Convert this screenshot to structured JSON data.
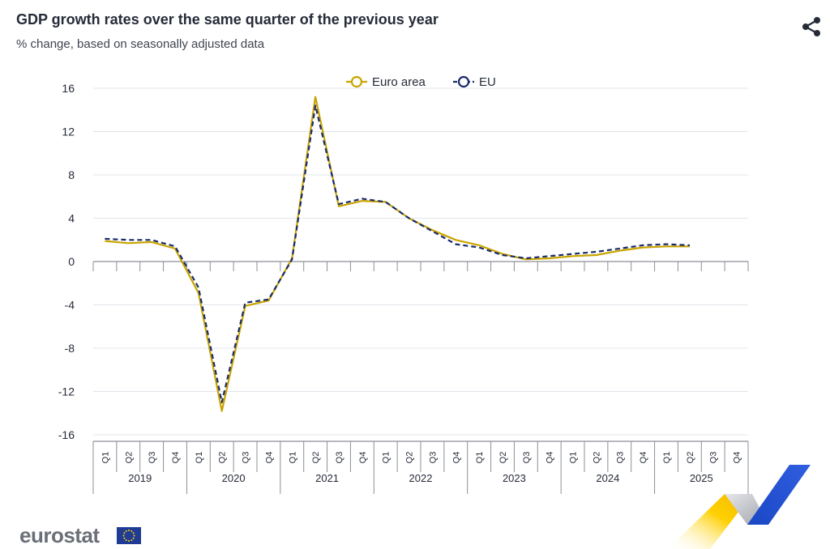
{
  "title": "GDP growth rates over the same quarter of the previous year",
  "subtitle": "% change, based on seasonally adjusted data",
  "share_icon": "share-icon",
  "brand": {
    "logo_text": "eurostat",
    "flag_icon": "eu-flag-icon"
  },
  "colors": {
    "euro_area": "#c9a400",
    "eu": "#1a2b6b",
    "grid": "#e2e4ea",
    "axis": "#8c8f96"
  },
  "chart_data": {
    "type": "line",
    "title": "GDP growth rates over the same quarter of the previous year",
    "subtitle": "% change, based on seasonally adjusted data",
    "ylim": [
      -16,
      16
    ],
    "yticks": [
      16,
      12,
      8,
      4,
      0,
      -4,
      -8,
      -12,
      -16
    ],
    "grid": true,
    "legend_placement": "top-center",
    "years": [
      "2019",
      "2020",
      "2021",
      "2022",
      "2023",
      "2024",
      "2025"
    ],
    "quarters": [
      "Q1",
      "Q2",
      "Q3",
      "Q4"
    ],
    "series": [
      {
        "name": "Euro area",
        "values": [
          1.9,
          1.7,
          1.8,
          1.2,
          -2.9,
          -13.8,
          -4.1,
          -3.6,
          0.3,
          15.2,
          5.1,
          5.6,
          5.5,
          4.0,
          2.9,
          2.0,
          1.5,
          0.7,
          0.2,
          0.3,
          0.5,
          0.6,
          1.0,
          1.3,
          1.4,
          1.4
        ]
      },
      {
        "name": "EU",
        "values": [
          2.1,
          2.0,
          2.0,
          1.4,
          -2.4,
          -13.0,
          -3.8,
          -3.5,
          0.2,
          14.4,
          5.3,
          5.8,
          5.5,
          4.0,
          2.8,
          1.6,
          1.3,
          0.6,
          0.3,
          0.5,
          0.7,
          0.9,
          1.2,
          1.5,
          1.6,
          1.5
        ]
      }
    ]
  }
}
